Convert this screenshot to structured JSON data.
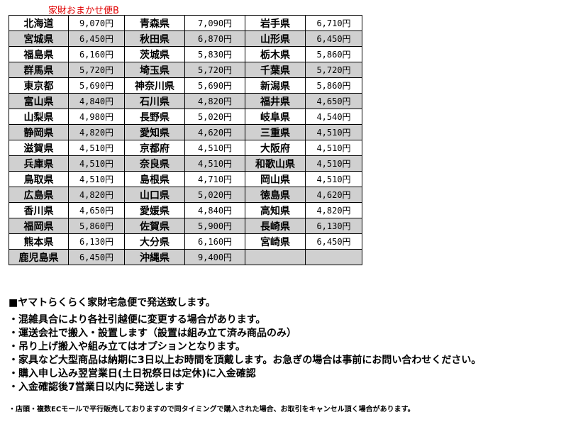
{
  "label": "家財おまかせ便B",
  "rows": [
    [
      [
        "北海道",
        "9,070円"
      ],
      [
        "青森県",
        "7,090円"
      ],
      [
        "岩手県",
        "6,710円"
      ]
    ],
    [
      [
        "宮城県",
        "6,450円"
      ],
      [
        "秋田県",
        "6,870円"
      ],
      [
        "山形県",
        "6,450円"
      ]
    ],
    [
      [
        "福島県",
        "6,160円"
      ],
      [
        "茨城県",
        "5,830円"
      ],
      [
        "栃木県",
        "5,860円"
      ]
    ],
    [
      [
        "群馬県",
        "5,720円"
      ],
      [
        "埼玉県",
        "5,720円"
      ],
      [
        "千葉県",
        "5,720円"
      ]
    ],
    [
      [
        "東京都",
        "5,690円"
      ],
      [
        "神奈川県",
        "5,690円"
      ],
      [
        "新潟県",
        "5,860円"
      ]
    ],
    [
      [
        "富山県",
        "4,840円"
      ],
      [
        "石川県",
        "4,820円"
      ],
      [
        "福井県",
        "4,650円"
      ]
    ],
    [
      [
        "山梨県",
        "4,980円"
      ],
      [
        "長野県",
        "5,020円"
      ],
      [
        "岐阜県",
        "4,540円"
      ]
    ],
    [
      [
        "静岡県",
        "4,820円"
      ],
      [
        "愛知県",
        "4,620円"
      ],
      [
        "三重県",
        "4,510円"
      ]
    ],
    [
      [
        "滋賀県",
        "4,510円"
      ],
      [
        "京都府",
        "4,510円"
      ],
      [
        "大阪府",
        "4,510円"
      ]
    ],
    [
      [
        "兵庫県",
        "4,510円"
      ],
      [
        "奈良県",
        "4,510円"
      ],
      [
        "和歌山県",
        "4,510円"
      ]
    ],
    [
      [
        "鳥取県",
        "4,510円"
      ],
      [
        "島根県",
        "4,710円"
      ],
      [
        "岡山県",
        "4,510円"
      ]
    ],
    [
      [
        "広島県",
        "4,820円"
      ],
      [
        "山口県",
        "5,020円"
      ],
      [
        "徳島県",
        "4,620円"
      ]
    ],
    [
      [
        "香川県",
        "4,650円"
      ],
      [
        "愛媛県",
        "4,840円"
      ],
      [
        "高知県",
        "4,820円"
      ]
    ],
    [
      [
        "福岡県",
        "5,860円"
      ],
      [
        "佐賀県",
        "5,900円"
      ],
      [
        "長崎県",
        "6,130円"
      ]
    ],
    [
      [
        "熊本県",
        "6,130円"
      ],
      [
        "大分県",
        "6,160円"
      ],
      [
        "宮崎県",
        "6,450円"
      ]
    ],
    [
      [
        "鹿児島県",
        "6,450円"
      ],
      [
        "沖縄県",
        "9,400円"
      ],
      [
        "",
        ""
      ]
    ]
  ],
  "notes": {
    "heading": "■ヤマトらくらく家財宅急便で発送致します。",
    "items": [
      "・混雑具合により各社引越便に変更する場合があります。",
      "・運送会社で搬入・設置します（設置は組み立て済み商品のみ）",
      "・吊り上げ搬入や組み立てはオプションとなります。",
      "・家具など大型商品は納期に3日以上お時間を頂戴します。お急ぎの場合は事前にお問い合わせください。",
      "・購入申し込み翌営業日(土日祝祭日は定休)に入金確認",
      "・入金確認後7営業日以内に発送します"
    ],
    "small": "・店頭・複数ECモールで平行販売しておりますので同タイミングで購入された場合、お取引をキャンセル頂く場合があります。"
  }
}
